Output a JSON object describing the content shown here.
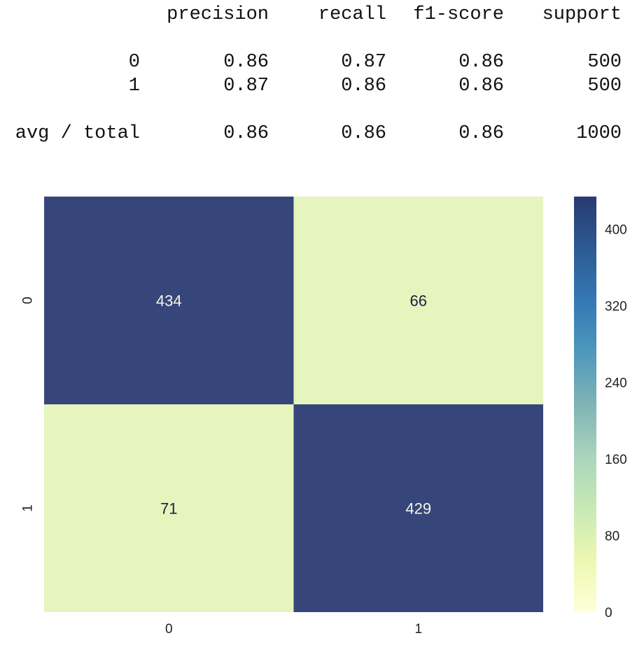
{
  "classification_report": {
    "headers": [
      "precision",
      "recall",
      "f1-score",
      "support"
    ],
    "rows": [
      {
        "label": "0",
        "values": [
          "0.86",
          "0.87",
          "0.86",
          "500"
        ]
      },
      {
        "label": "1",
        "values": [
          "0.87",
          "0.86",
          "0.86",
          "500"
        ]
      },
      {
        "label": "avg / total",
        "values": [
          "0.86",
          "0.86",
          "0.86",
          "1000"
        ]
      }
    ]
  },
  "chart_data": {
    "type": "heatmap",
    "title": "",
    "xlabel": "",
    "ylabel": "",
    "x_categories": [
      "0",
      "1"
    ],
    "y_categories": [
      "0",
      "1"
    ],
    "values": [
      [
        434,
        66
      ],
      [
        71,
        429
      ]
    ],
    "colormap": "YlGnBu",
    "colorbar": {
      "ticks": [
        0,
        80,
        160,
        240,
        320,
        400
      ],
      "range": [
        0,
        434
      ],
      "placement": "right"
    },
    "annotated": true,
    "grid": false
  },
  "colors": {
    "dark_cell": "#37467a",
    "light_cell": "#e6f4be",
    "dark_text": "#1a2244",
    "light_text": "#f4f6e6"
  }
}
